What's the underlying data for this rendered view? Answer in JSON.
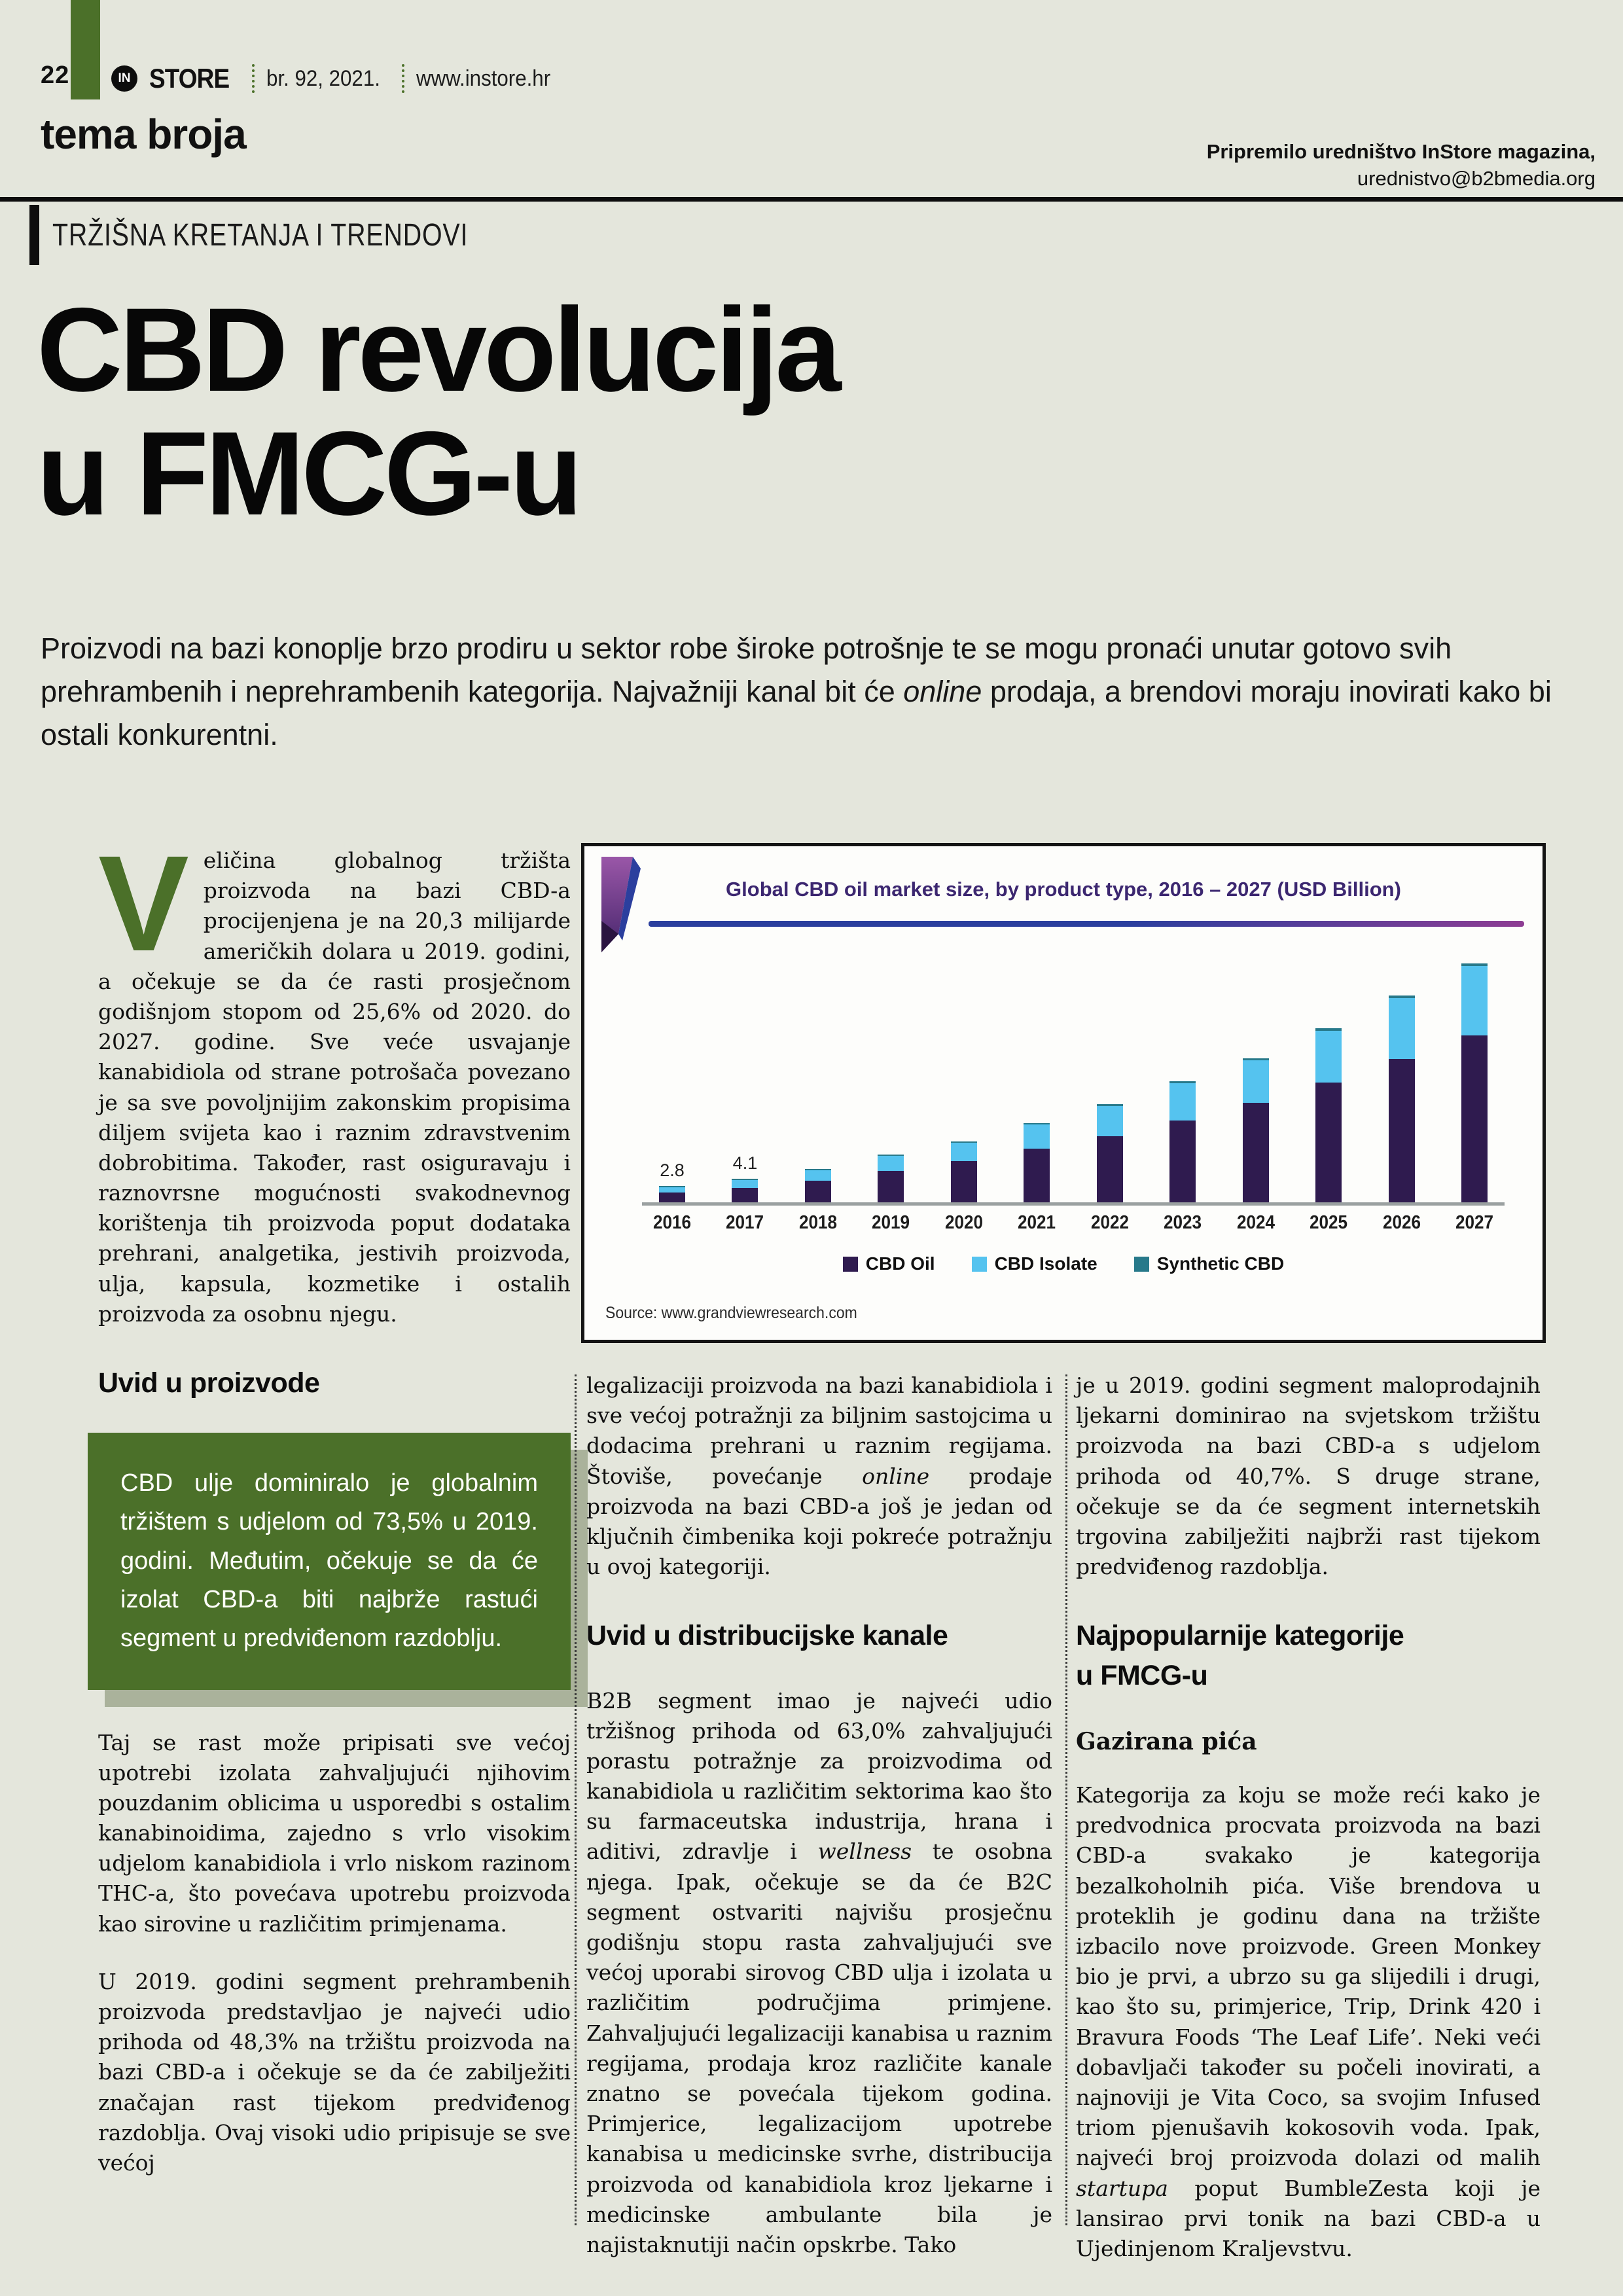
{
  "page": {
    "background": "#e4e6dc",
    "number": "22"
  },
  "masthead": {
    "logo_in": "IN",
    "logo_store": "STORE",
    "issue": "br. 92, 2021.",
    "site": "www.instore.hr",
    "section": "tema broja",
    "credit_line1": "Pripremilo uredništvo InStore magazina,",
    "credit_line2": "urednistvo@b2bmedia.org"
  },
  "kicker": "TRŽIŠNA KRETANJA I TRENDOVI",
  "headline": {
    "line1": "CBD revolucija",
    "line2": "u FMCG-u"
  },
  "intro": {
    "pre": "Proizvodi na bazi konoplje brzo prodiru u sektor robe široke potrošnje te se mogu pronaći unutar gotovo svih prehrambenih i neprehrambenih kategorija. Najvažniji kanal bit će ",
    "italic": "online",
    "post": " prodaja, a brendovi moraju inovirati kako bi ostali konkurentni."
  },
  "col1": {
    "dropcap": "V",
    "p1": "eličina globalnog tržišta proizvoda na bazi CBD-a procijenjena je na 20,3 milijarde američkih dolara u 2019. godini, a očekuje se da će rasti prosječnom godišnjom stopom od 25,6% od 2020. do 2027. godine. Sve veće usvajanje kanabidiola od strane potrošača povezano je sa sve povoljnijim zakonskim propisima diljem svijeta kao i raznim zdravstvenim dobrobitima. Također, rast osiguravaju i raznovrsne mogućnosti svakodnevnog korištenja tih proizvoda poput dodataka prehrani, analgetika, jestivih proizvoda, ulja, kapsula, kozmetike i ostalih proizvoda za osobnu njegu.",
    "heading": "Uvid u proizvode",
    "green_box": "CBD ulje dominiralo je globalnim tržištem s udjelom od 73,5% u 2019. godini. Međutim, očekuje se da će izolat CBD-a biti najbrže rastući segment u predviđenom razdoblju.",
    "p2": "Taj se rast može pripisati sve većoj upotrebi izolata zahvaljujući njihovim pouzdanim oblicima u usporedbi s ostalim kanabinoidima, zajedno s vrlo visokim udjelom kanabidiola i vrlo niskom razinom THC-a, što povećava upotrebu proizvoda kao sirovine u različitim primjenama.",
    "p3": "U 2019. godini segment prehrambenih proizvoda predstavljao je najveći udio prihoda od 48,3% na tržištu proizvoda na bazi CBD-a i očekuje se da će zabilježiti značajan rast tijekom predviđenog razdoblja. Ovaj visoki udio pripisuje se sve većoj"
  },
  "col2": {
    "p1_pre": "legalizaciji proizvoda na bazi kanabidiola i sve većoj potražnji za biljnim sastojcima u dodacima prehrani u raznim regijama. Štoviše, povećanje ",
    "p1_italic": "online",
    "p1_post": " prodaje proizvoda na bazi CBD-a još je jedan od ključnih čimbenika koji pokreće potražnju u ovoj kategoriji.",
    "heading": "Uvid u distribucijske kanale",
    "p2_pre": "B2B segment imao je najveći udio tržišnog prihoda od 63,0% zahvaljujući porastu potražnje za proizvodima od kanabidiola u različitim sektorima kao što su farmaceutska industrija, hrana i aditivi, zdravlje i ",
    "p2_italic": "wellness",
    "p2_post": " te osobna njega. Ipak, očekuje se da će B2C segment ostvariti najvišu prosječnu godišnju stopu rasta zahvaljujući sve većoj uporabi sirovog CBD ulja i izolata u različitim područjima primjene. Zahvaljujući legalizaciji kanabisa u raznim regijama, prodaja kroz različite kanale znatno se povećala tijekom godina. Primjerice, legalizacijom upotrebe kanabisa u medicinske svrhe, distribucija proizvoda od kanabidiola kroz ljekarne i medicinske ambulante bila je najistaknutiji način opskrbe. Tako"
  },
  "col3": {
    "p1": "je u 2019. godini segment maloprodajnih ljekarni dominirao na svjetskom tržištu proizvoda na bazi CBD-a s udjelom prihoda od 40,7%. S druge strane, očekuje se da će segment internetskih trgovina zabilježiti najbrži rast tijekom predviđenog razdoblja.",
    "heading_line1": "Najpopularnije kategorije",
    "heading_line2": "u FMCG-u",
    "subheading": "Gazirana pića",
    "p2_pre": "Kategorija za koju se može reći kako je predvodnica procvata proizvoda na bazi CBD-a svakako je kategorija bezalkoholnih pića. Više brendova u proteklih je godinu dana na tržište izbacilo nove proizvode. Green Monkey bio je prvi, a ubrzo su ga slijedili i drugi, kao što su, primjerice, Trip, Drink 420 i Bravura Foods ‘The Leaf Life’. Neki veći dobavljači također su počeli inovirati, a najnoviji je Vita Coco, sa svojim Infused triom pjenušavih kokosovih voda. Ipak, najveći broj proizvoda dolazi od malih ",
    "p2_italic": "startupa",
    "p2_post": " poput BumbleZesta koji je lansirao prvi tonik na bazi CBD-a u Ujedinjenom Kraljevstvu."
  },
  "chart": {
    "title": "Global CBD oil market size, by product type, 2016 – 2027 (USD Billion)",
    "source": "Source: www.grandviewresearch.com"
  },
  "chart_data": {
    "type": "bar",
    "stacked": true,
    "title": "Global CBD oil market size, by product type, 2016 – 2027 (USD Billion)",
    "xlabel": "",
    "ylabel": "USD Billion",
    "ylim": [
      0,
      45
    ],
    "grid": false,
    "legend_position": "bottom",
    "categories": [
      "2016",
      "2017",
      "2018",
      "2019",
      "2020",
      "2021",
      "2022",
      "2023",
      "2024",
      "2025",
      "2026",
      "2027"
    ],
    "series": [
      {
        "name": "CBD Oil",
        "color": "#2f1b4f",
        "values": [
          1.7,
          2.6,
          3.8,
          5.6,
          7.3,
          9.5,
          11.7,
          14.5,
          17.7,
          21.3,
          25.5,
          29.6
        ]
      },
      {
        "name": "CBD Isolate",
        "color": "#55c3ef",
        "values": [
          0.95,
          1.35,
          1.85,
          2.6,
          3.3,
          4.3,
          5.4,
          6.7,
          7.5,
          9.2,
          10.8,
          12.4
        ]
      },
      {
        "name": "Synthetic CBD",
        "color": "#27798a",
        "values": [
          0.15,
          0.15,
          0.15,
          0.2,
          0.2,
          0.3,
          0.3,
          0.3,
          0.4,
          0.4,
          0.4,
          0.4
        ]
      }
    ],
    "totals": [
      2.8,
      4.1,
      5.8,
      8.4,
      10.8,
      14.1,
      17.4,
      21.5,
      25.6,
      30.9,
      36.7,
      42.4
    ],
    "bar_total_labels": [
      "2.8",
      "4.1",
      "",
      "",
      "",
      "",
      "",
      "",
      "",
      "",
      "",
      ""
    ],
    "source": "Source: www.grandviewresearch.com"
  },
  "colors": {
    "accent_green": "#4b7029",
    "box_shadow": "#aab29b",
    "chart_title": "#3c2770",
    "rule_gradient_left": "#2b3f9e",
    "rule_gradient_right": "#8e3d93"
  }
}
